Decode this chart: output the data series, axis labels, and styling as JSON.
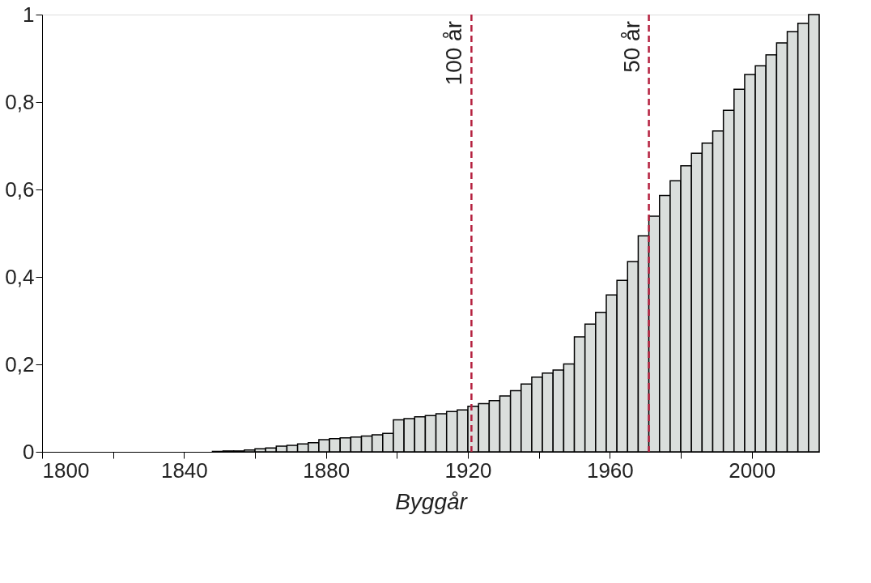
{
  "chart_data": {
    "type": "histogram",
    "xlabel": "Byggår",
    "bins": [
      1800,
      1803,
      1806,
      1809,
      1812,
      1815,
      1818,
      1821,
      1824,
      1827,
      1830,
      1833,
      1836,
      1839,
      1842,
      1845,
      1848,
      1851,
      1854,
      1857,
      1860,
      1863,
      1866,
      1869,
      1872,
      1875,
      1878,
      1881,
      1884,
      1887,
      1890,
      1893,
      1896,
      1899,
      1902,
      1905,
      1908,
      1911,
      1914,
      1917,
      1920,
      1923,
      1926,
      1929,
      1932,
      1935,
      1938,
      1941,
      1944,
      1947,
      1950,
      1953,
      1956,
      1959,
      1962,
      1965,
      1968,
      1971,
      1974,
      1977,
      1980,
      1983,
      1986,
      1989,
      1992,
      1995,
      1998,
      2001,
      2004,
      2007,
      2010,
      2013,
      2016,
      2019
    ],
    "values": [
      0,
      0,
      0,
      0,
      0,
      0,
      0,
      0,
      0,
      0,
      0,
      0,
      0,
      0,
      0,
      0,
      0.001,
      0.002,
      0.002,
      0.004,
      0.007,
      0.009,
      0.013,
      0.015,
      0.018,
      0.021,
      0.028,
      0.03,
      0.032,
      0.034,
      0.036,
      0.039,
      0.042,
      0.073,
      0.076,
      0.08,
      0.083,
      0.087,
      0.092,
      0.096,
      0.104,
      0.11,
      0.117,
      0.128,
      0.14,
      0.155,
      0.171,
      0.18,
      0.187,
      0.201,
      0.263,
      0.292,
      0.319,
      0.359,
      0.392,
      0.435,
      0.494,
      0.539,
      0.586,
      0.62,
      0.654,
      0.683,
      0.706,
      0.734,
      0.781,
      0.829,
      0.863,
      0.883,
      0.908,
      0.935,
      0.961,
      0.98,
      1.0
    ],
    "color": "#dadedc",
    "xlim": [
      1800,
      2019
    ],
    "ylim": [
      0,
      1
    ],
    "xticks": [
      1800,
      {
        "value": 1820,
        "label": null
      },
      1840,
      {
        "value": 1860,
        "label": null
      },
      1880,
      {
        "value": 1900,
        "label": null
      },
      1920,
      {
        "value": 1940,
        "label": null
      },
      1960,
      {
        "value": 1980,
        "label": null
      },
      2000
    ],
    "yticks": [
      0,
      {
        "value": 0.2,
        "label": "0,2"
      },
      {
        "value": 0.4,
        "label": "0,4"
      },
      {
        "value": 0.6,
        "label": "0,6"
      },
      {
        "value": 0.8,
        "label": "0,8"
      },
      1
    ],
    "grid": false,
    "ref_lines": [
      {
        "axis": "x",
        "value": 1921,
        "label": "100 år",
        "color": "#b5213f",
        "line_style": "dashed"
      },
      {
        "axis": "x",
        "value": 1971,
        "label": "50 år",
        "color": "#b5213f",
        "line_style": "dashed"
      }
    ]
  }
}
